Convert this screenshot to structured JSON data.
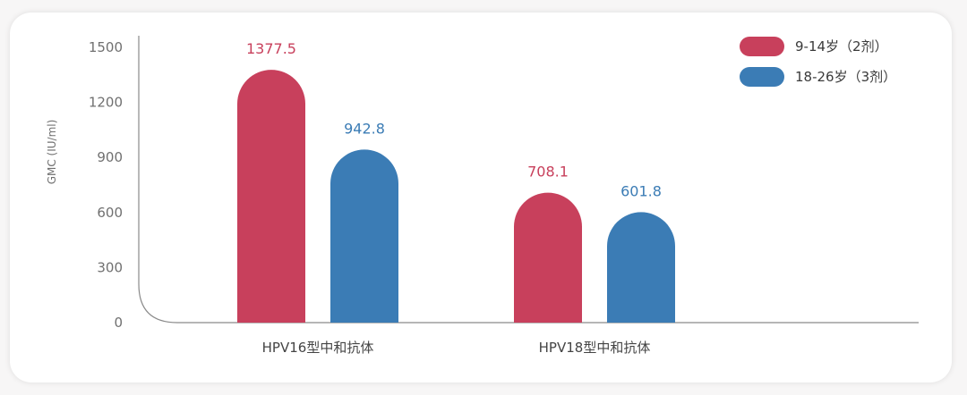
{
  "chart_data": {
    "type": "bar",
    "title": "",
    "xlabel": "",
    "ylabel": "GMC (IU/ml)",
    "ylim": [
      0,
      1500
    ],
    "yticks": [
      0,
      300,
      600,
      900,
      1200,
      1500
    ],
    "categories": [
      "HPV16型中和抗体",
      "HPV18型中和抗体"
    ],
    "series": [
      {
        "name": "9-14岁（2剂）",
        "values": [
          1377.5,
          708.1
        ],
        "value_labels": [
          "1377.5",
          "708.1"
        ],
        "color": "#c8405c"
      },
      {
        "name": "18-26岁（3剂）",
        "values": [
          942.8,
          601.8
        ],
        "value_labels": [
          "942.8",
          "601.8"
        ],
        "color": "#3b7cb5"
      }
    ],
    "legend_position": "top-right",
    "grid": false
  }
}
